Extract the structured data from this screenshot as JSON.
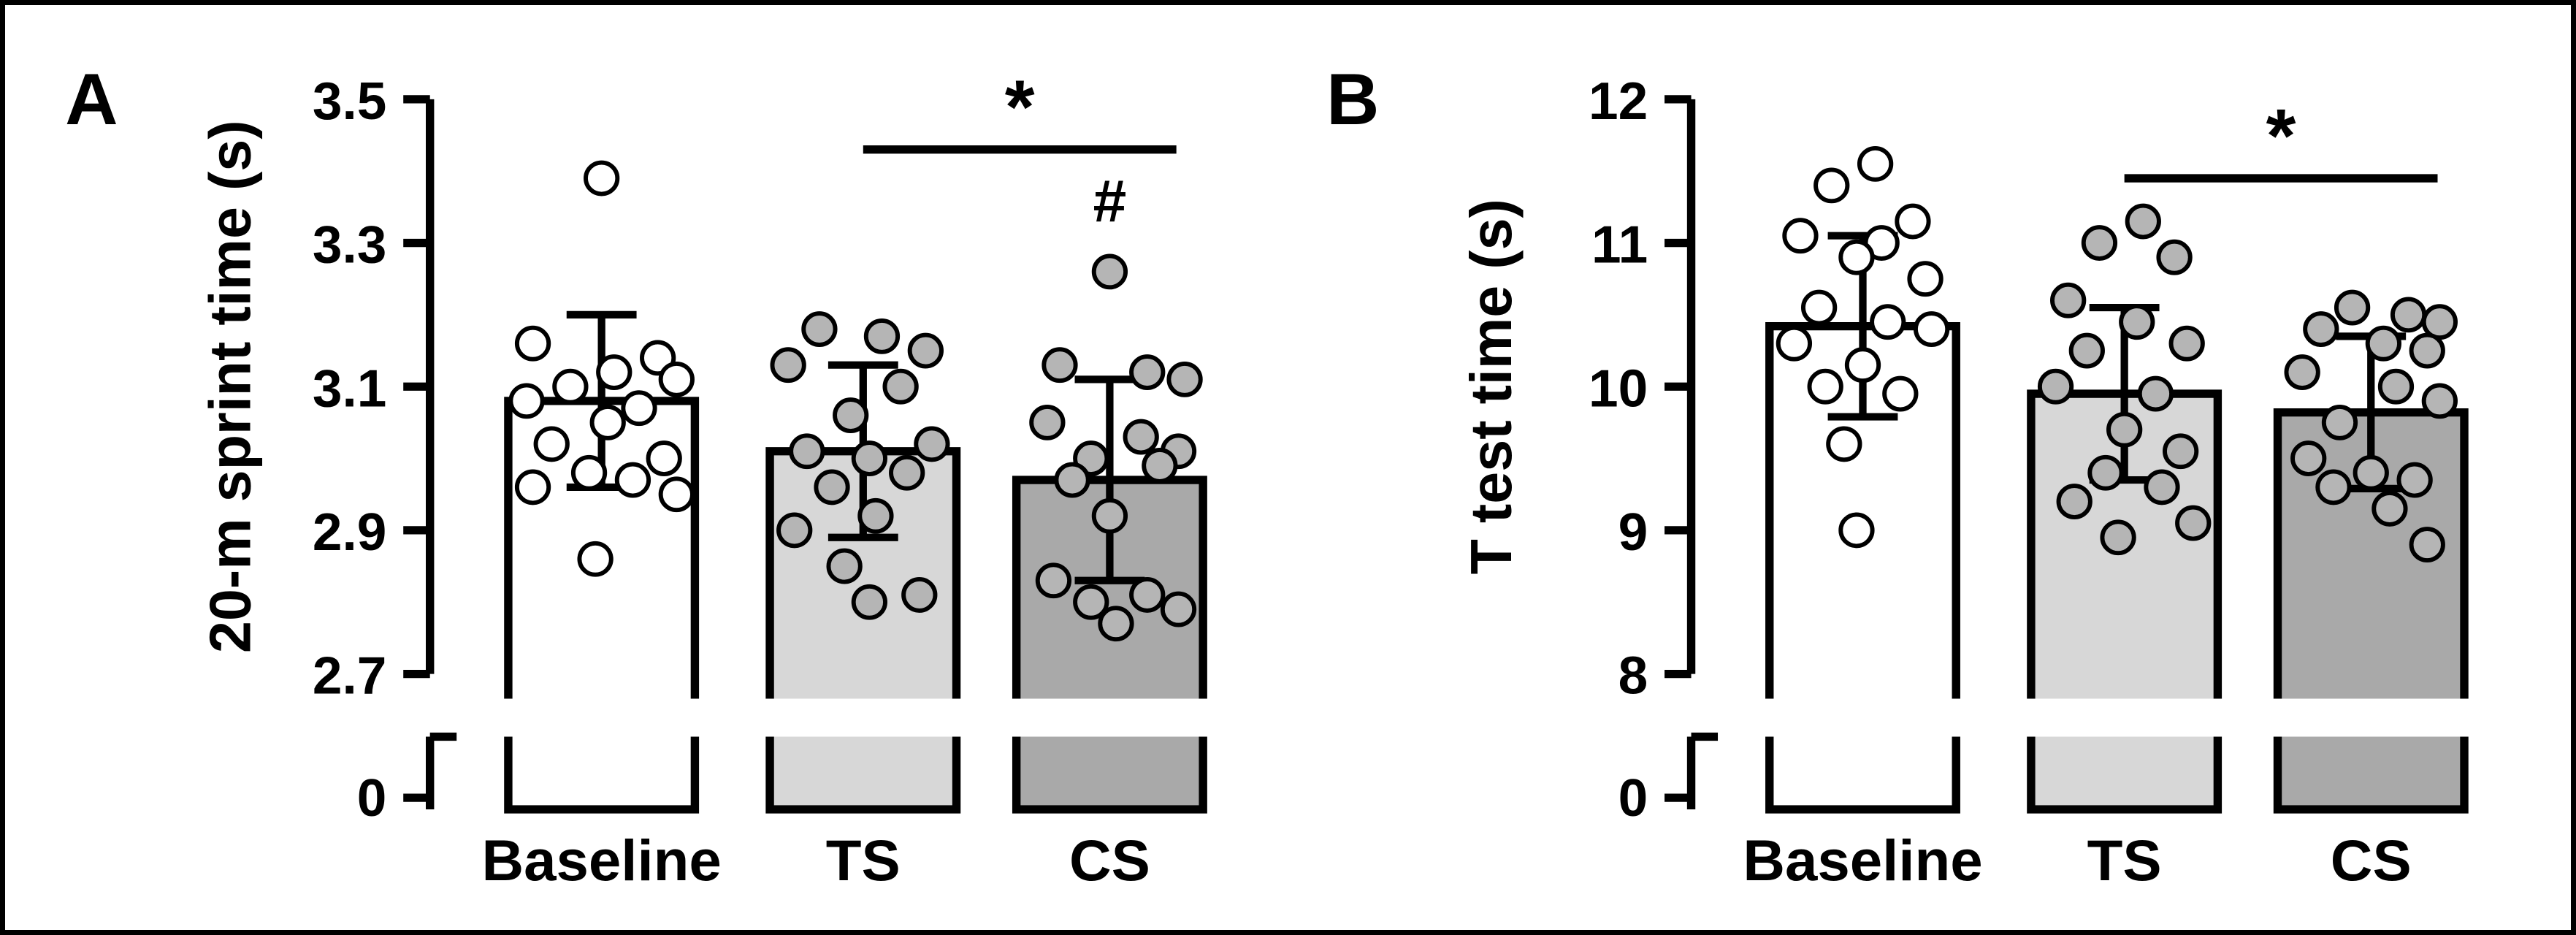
{
  "figure": {
    "background": "#ffffff",
    "border_color": "#000000",
    "axis_color": "#000000",
    "panel_labels": [
      "A",
      "B"
    ]
  },
  "chart_data": [
    {
      "type": "bar",
      "panel_label": "A",
      "title": "",
      "xlabel": "",
      "ylabel": "20-m sprint time (s)",
      "categories": [
        "Baseline",
        "TS",
        "CS"
      ],
      "ylim": [
        2.7,
        3.5
      ],
      "ytick_values": [
        2.7,
        2.9,
        3.1,
        3.3,
        3.5
      ],
      "ytick_labels": [
        "2.7",
        "2.9",
        "3.1",
        "3.3",
        "3.5"
      ],
      "axis_break_zero_label": "0",
      "grid": false,
      "legend": "none",
      "series": [
        {
          "category": "Baseline",
          "mean": 3.08,
          "sd": 0.12,
          "bar_color": "#ffffff",
          "dot_color": "#ffffff",
          "points": [
            3.39,
            3.16,
            3.14,
            3.12,
            3.11,
            3.1,
            3.08,
            3.07,
            3.05,
            3.02,
            3.0,
            2.98,
            2.97,
            2.96,
            2.95,
            2.86
          ],
          "jitter": [
            0.0,
            -0.55,
            0.45,
            0.1,
            0.6,
            -0.25,
            -0.6,
            0.3,
            0.05,
            -0.4,
            0.5,
            -0.1,
            0.25,
            -0.55,
            0.6,
            -0.05
          ]
        },
        {
          "category": "TS",
          "mean": 3.01,
          "sd": 0.12,
          "bar_color": "#d7d7d7",
          "dot_color": "#b5b5b5",
          "points": [
            3.18,
            3.17,
            3.15,
            3.13,
            3.1,
            3.06,
            3.02,
            3.01,
            3.0,
            2.98,
            2.96,
            2.92,
            2.9,
            2.85,
            2.81,
            2.8
          ],
          "jitter": [
            -0.35,
            0.15,
            0.5,
            -0.6,
            0.3,
            -0.1,
            0.55,
            -0.45,
            0.05,
            0.35,
            -0.25,
            0.1,
            -0.55,
            -0.15,
            0.45,
            0.05
          ]
        },
        {
          "category": "CS",
          "mean": 2.97,
          "sd": 0.14,
          "bar_color": "#a9a9a9",
          "dot_color": "#b5b5b5",
          "points": [
            3.26,
            3.13,
            3.12,
            3.11,
            3.05,
            3.03,
            3.01,
            3.0,
            2.99,
            2.97,
            2.92,
            2.83,
            2.81,
            2.8,
            2.79,
            2.77
          ],
          "jitter": [
            0.0,
            -0.4,
            0.3,
            0.6,
            -0.5,
            0.25,
            0.55,
            -0.15,
            0.4,
            -0.3,
            0.0,
            -0.45,
            0.3,
            -0.15,
            0.55,
            0.05
          ]
        }
      ],
      "annotations": [
        {
          "kind": "sig-line",
          "label": "*",
          "from": "TS",
          "to": "CS",
          "at_value": 3.43
        },
        {
          "kind": "text",
          "label": "#",
          "category": "CS",
          "at_value": 3.33
        }
      ]
    },
    {
      "type": "bar",
      "panel_label": "B",
      "title": "",
      "xlabel": "",
      "ylabel": "T test time (s)",
      "categories": [
        "Baseline",
        "TS",
        "CS"
      ],
      "ylim": [
        8,
        12
      ],
      "ytick_values": [
        8,
        9,
        10,
        11,
        12
      ],
      "ytick_labels": [
        "8",
        "9",
        "10",
        "11",
        "12"
      ],
      "axis_break_zero_label": "0",
      "grid": false,
      "legend": "none",
      "series": [
        {
          "category": "Baseline",
          "mean": 10.42,
          "sd": 0.63,
          "bar_color": "#ffffff",
          "dot_color": "#ffffff",
          "points": [
            11.55,
            11.4,
            11.15,
            11.05,
            11.0,
            10.9,
            10.75,
            10.55,
            10.45,
            10.4,
            10.3,
            10.15,
            10.0,
            9.95,
            9.6,
            9.0
          ],
          "jitter": [
            0.1,
            -0.25,
            0.4,
            -0.5,
            0.15,
            -0.05,
            0.5,
            -0.35,
            0.2,
            0.55,
            -0.55,
            0.0,
            -0.3,
            0.3,
            -0.15,
            -0.05
          ]
        },
        {
          "category": "TS",
          "mean": 9.95,
          "sd": 0.6,
          "bar_color": "#d7d7d7",
          "dot_color": "#b5b5b5",
          "points": [
            11.15,
            11.0,
            10.9,
            10.6,
            10.45,
            10.3,
            10.25,
            10.0,
            9.95,
            9.7,
            9.55,
            9.4,
            9.3,
            9.2,
            9.05,
            8.95
          ],
          "jitter": [
            0.15,
            -0.2,
            0.4,
            -0.45,
            0.1,
            0.5,
            -0.3,
            -0.55,
            0.25,
            0.0,
            0.45,
            -0.15,
            0.3,
            -0.4,
            0.55,
            -0.05
          ]
        },
        {
          "category": "CS",
          "mean": 9.82,
          "sd": 0.53,
          "bar_color": "#a9a9a9",
          "dot_color": "#b5b5b5",
          "points": [
            10.55,
            10.5,
            10.45,
            10.4,
            10.3,
            10.25,
            10.1,
            10.0,
            9.9,
            9.75,
            9.5,
            9.4,
            9.35,
            9.3,
            9.15,
            8.9
          ],
          "jitter": [
            -0.15,
            0.3,
            0.55,
            -0.4,
            0.1,
            0.45,
            -0.55,
            0.2,
            0.55,
            -0.25,
            -0.5,
            0.0,
            0.35,
            -0.3,
            0.15,
            0.45
          ]
        }
      ],
      "annotations": [
        {
          "kind": "sig-line",
          "label": "*",
          "from": "TS",
          "to": "CS",
          "at_value": 11.45
        }
      ]
    }
  ]
}
